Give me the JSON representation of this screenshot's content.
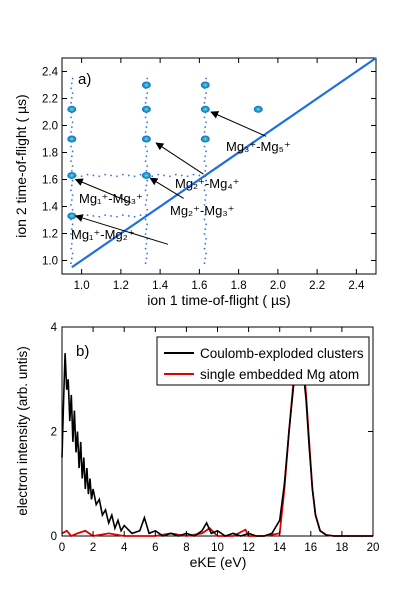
{
  "panel_a": {
    "label": "a)",
    "xlabel": "ion 1 time-of-flight ( µs)",
    "ylabel": "ion 2 time-of-flight ( µs)",
    "annotations": [
      {
        "text": "Mg₁⁺-Mg₂⁺",
        "from": [
          1.44,
          1.12
        ],
        "to": [
          0.97,
          1.33
        ]
      },
      {
        "text": "Mg₁⁺-Mg₃⁺",
        "from": [
          1.25,
          1.43
        ],
        "to": [
          0.97,
          1.6
        ]
      },
      {
        "text": "Mg₂⁺-Mg₃⁺",
        "from": [
          1.52,
          1.46
        ],
        "to": [
          1.35,
          1.61
        ]
      },
      {
        "text": "Mg₂⁺-Mg₄⁺",
        "from": [
          1.62,
          1.64
        ],
        "to": [
          1.38,
          1.87
        ]
      },
      {
        "text": "Mg₃⁺-Mg₅⁺",
        "from": [
          1.94,
          1.92
        ],
        "to": [
          1.66,
          2.1
        ]
      }
    ]
  },
  "panel_b": {
    "label": "b)",
    "xlabel": "eKE (eV)",
    "ylabel": "electron intensity (arb. untis)"
  },
  "colors": {
    "diagonal": "#1f6fe0",
    "clusters": "#000000",
    "single_atom": "#e00000"
  },
  "chart_data": [
    {
      "type": "heatmap",
      "title": "",
      "xlabel": "ion 1 time-of-flight ( µs)",
      "ylabel": "ion 2 time-of-flight ( µs)",
      "xlim": [
        0.9,
        2.5
      ],
      "ylim": [
        0.9,
        2.5
      ],
      "xticks": [
        1.0,
        1.2,
        1.4,
        1.6,
        1.8,
        2.0,
        2.2,
        2.4
      ],
      "yticks": [
        1.0,
        1.2,
        1.4,
        1.6,
        1.8,
        2.0,
        2.2,
        2.4
      ],
      "diagonal": [
        [
          0.95,
          0.95
        ],
        [
          2.5,
          2.5
        ]
      ],
      "coincidence_islands": [
        {
          "x": 0.95,
          "y": 1.33,
          "label": "Mg1+-Mg2+"
        },
        {
          "x": 0.95,
          "y": 1.63,
          "label": "Mg1+-Mg3+"
        },
        {
          "x": 1.33,
          "y": 1.63,
          "label": "Mg2+-Mg3+"
        },
        {
          "x": 1.33,
          "y": 1.9,
          "label": "Mg2+-Mg4+"
        },
        {
          "x": 1.63,
          "y": 2.12,
          "label": "Mg3+-Mg5+"
        },
        {
          "x": 0.95,
          "y": 1.9,
          "label": ""
        },
        {
          "x": 0.95,
          "y": 2.12,
          "label": ""
        },
        {
          "x": 1.33,
          "y": 2.12,
          "label": ""
        },
        {
          "x": 1.63,
          "y": 1.9,
          "label": ""
        },
        {
          "x": 1.33,
          "y": 2.3,
          "label": ""
        },
        {
          "x": 1.63,
          "y": 2.3,
          "label": ""
        },
        {
          "x": 1.9,
          "y": 2.12,
          "label": ""
        }
      ],
      "stripes_x": [
        0.95,
        1.33,
        1.63
      ],
      "stripes_y": [
        1.33,
        1.63
      ]
    },
    {
      "type": "line",
      "title": "",
      "xlabel": "eKE (eV)",
      "ylabel": "electron intensity (arb. untis)",
      "xlim": [
        0,
        20
      ],
      "ylim": [
        0,
        4
      ],
      "xticks": [
        0,
        2,
        4,
        6,
        8,
        10,
        12,
        14,
        16,
        18,
        20
      ],
      "yticks": [
        0,
        2,
        4
      ],
      "legend": "top-right",
      "series": [
        {
          "name": "Coulomb-exploded clusters",
          "color": "#000000",
          "x": [
            0,
            0.1,
            0.2,
            0.3,
            0.4,
            0.5,
            0.6,
            0.7,
            0.8,
            0.9,
            1.0,
            1.1,
            1.2,
            1.3,
            1.4,
            1.5,
            1.6,
            1.7,
            1.8,
            1.9,
            2.0,
            2.2,
            2.4,
            2.6,
            2.8,
            3.0,
            3.2,
            3.4,
            3.6,
            3.8,
            4.0,
            4.5,
            5.0,
            5.3,
            5.6,
            6.0,
            6.5,
            7.0,
            7.5,
            8.0,
            8.5,
            9.0,
            9.3,
            9.6,
            10.0,
            10.5,
            11.0,
            11.5,
            12.0,
            12.5,
            13.0,
            13.5,
            14.0,
            14.3,
            14.6,
            14.9,
            15.1,
            15.3,
            15.5,
            15.7,
            15.9,
            16.1,
            16.3,
            16.6,
            17.0,
            17.5,
            18.0,
            19.0,
            20.0
          ],
          "y": [
            1.5,
            2.6,
            3.5,
            2.8,
            3.0,
            2.2,
            2.7,
            1.8,
            2.4,
            1.6,
            2.0,
            1.3,
            1.8,
            1.1,
            1.5,
            0.9,
            1.3,
            0.8,
            1.1,
            0.7,
            0.9,
            0.6,
            0.7,
            0.4,
            0.5,
            0.25,
            0.4,
            0.15,
            0.3,
            0.1,
            0.2,
            0.05,
            0.1,
            0.35,
            0.05,
            0.1,
            0.0,
            0.05,
            0.0,
            0.05,
            0.0,
            0.1,
            0.25,
            0.05,
            0.1,
            0.0,
            0.05,
            0.0,
            0.05,
            0.0,
            0.0,
            0.05,
            0.3,
            1.0,
            2.0,
            2.9,
            3.3,
            3.4,
            3.2,
            2.6,
            1.7,
            0.9,
            0.4,
            0.1,
            0.02,
            0.0,
            0.0,
            0.0,
            0.0
          ]
        },
        {
          "name": "single embedded Mg atom",
          "color": "#e00000",
          "x": [
            0,
            0.3,
            0.6,
            1.0,
            1.5,
            2.0,
            3.0,
            4.0,
            5.0,
            6.0,
            7.0,
            8.0,
            9.0,
            9.5,
            10.0,
            11.0,
            11.8,
            12.0,
            13.0,
            14.0,
            14.3,
            14.6,
            14.9,
            15.1,
            15.3,
            15.5,
            15.7,
            15.9,
            16.1,
            16.3,
            16.6,
            17.0,
            17.5,
            18.0,
            19.0,
            20.0
          ],
          "y": [
            0.05,
            0.1,
            0.0,
            0.05,
            0.1,
            0.0,
            0.05,
            0.0,
            0.0,
            0.0,
            0.05,
            0.0,
            0.05,
            0.15,
            0.0,
            0.0,
            0.12,
            0.0,
            0.0,
            0.05,
            0.9,
            2.0,
            3.0,
            3.5,
            3.65,
            3.4,
            2.7,
            1.8,
            0.9,
            0.4,
            0.1,
            0.02,
            0.0,
            0.0,
            0.0,
            0.0
          ]
        }
      ]
    }
  ]
}
